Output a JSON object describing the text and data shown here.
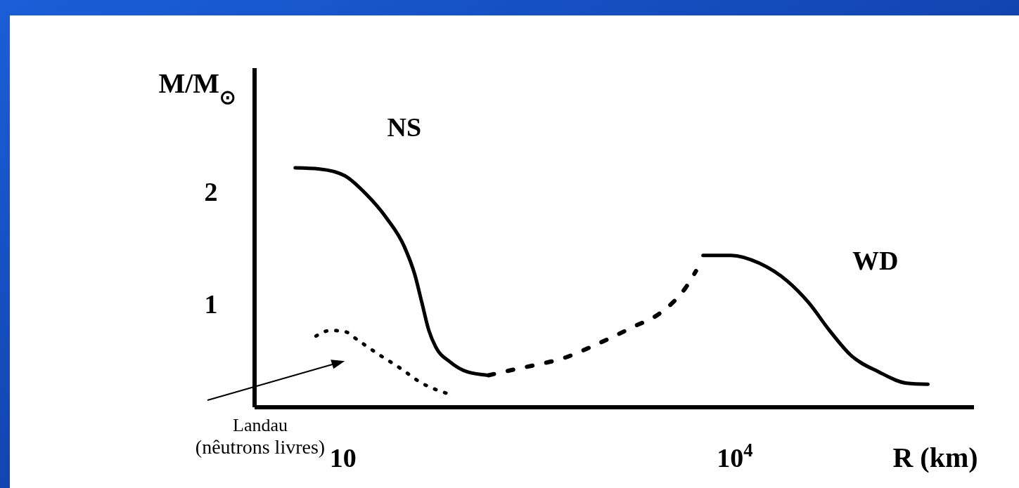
{
  "chart_data": {
    "type": "line",
    "ylabel": "M/M$_{⊙}$",
    "xlabel": "R (km)",
    "log": "x",
    "xlim": [
      2.1,
      680000
    ],
    "ylim": [
      0.075,
      3.1
    ],
    "xticks": [
      {
        "value": 10,
        "label": "10"
      },
      {
        "value": 10000,
        "label": "10$^{4}$"
      }
    ],
    "yticks": [
      1,
      2
    ],
    "grid": false,
    "series": [
      {
        "name": "NS",
        "color": "#000000",
        "line_style": "solid",
        "x": [
          4.3,
          6.6,
          10.3,
          14.9,
          21.6,
          29.4,
          35.4,
          40.1,
          45.4,
          51.4,
          65.9,
          89.8,
          130
        ],
        "values": [
          2.21,
          2.2,
          2.14,
          1.98,
          1.76,
          1.51,
          1.26,
          1.01,
          0.76,
          0.61,
          0.48,
          0.39,
          0.36
        ]
      },
      {
        "color": "#000000",
        "line_style": "dashed",
        "x": [
          130,
          201,
          292,
          479,
          889,
          1655,
          2718,
          4198,
          5050
        ],
        "values": [
          0.36,
          0.41,
          0.45,
          0.51,
          0.64,
          0.79,
          0.92,
          1.14,
          1.29
        ]
      },
      {
        "name": "WD",
        "color": "#000000",
        "line_style": "solid",
        "x": [
          5715,
          9390,
          15420,
          25300,
          36700,
          53200,
          77300,
          127000,
          208000,
          302000
        ],
        "values": [
          1.43,
          1.43,
          1.36,
          1.2,
          1.01,
          0.76,
          0.54,
          0.39,
          0.29,
          0.28
        ]
      },
      {
        "name": "Landau (nêutrons livres)",
        "color": "#000000",
        "line_style": "dotted",
        "x": [
          6.2,
          8.0,
          10.3,
          13.1,
          19.1,
          27.7,
          40.1,
          62
        ],
        "values": [
          0.71,
          0.76,
          0.75,
          0.67,
          0.54,
          0.42,
          0.29,
          0.2
        ]
      }
    ]
  }
}
